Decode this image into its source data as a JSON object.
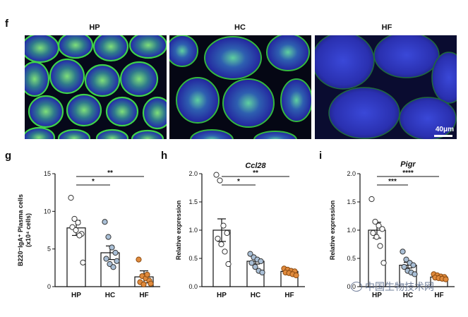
{
  "panels": {
    "f": "f",
    "g": "g",
    "h": "h",
    "i": "i"
  },
  "micrographs": [
    {
      "label": "HP"
    },
    {
      "label": "HC"
    },
    {
      "label": "HF"
    }
  ],
  "scale_bar_label": "40μm",
  "chart_data": [
    {
      "type": "bar",
      "panel": "g",
      "title": "",
      "ylabel": "B220⁻IgA⁺ Plasma cells",
      "ylabel2": "(x10⁴ cells)",
      "categories": [
        "HP",
        "HC",
        "HF"
      ],
      "means": [
        7.8,
        4.5,
        1.3
      ],
      "sem": [
        1.0,
        0.9,
        0.8
      ],
      "ylim": [
        0,
        15
      ],
      "yticks": [
        0,
        5,
        10,
        15
      ],
      "ytick_labels": [
        "0",
        "5",
        "10",
        "15"
      ],
      "points": [
        [
          11.8,
          9.0,
          8.5,
          7.0,
          7.9,
          7.5,
          6.8,
          3.2
        ],
        [
          8.6,
          6.6,
          5.2,
          4.5,
          3.7,
          3.0,
          2.6,
          3.4
        ],
        [
          3.6,
          1.4,
          1.1,
          0.8,
          0.6,
          0.3,
          1.6,
          0.4
        ]
      ],
      "colors": [
        "#ffffff",
        "#a9bfd6",
        "#e08a3c"
      ],
      "significance": [
        {
          "from": 0,
          "to": 1,
          "label": "*"
        },
        {
          "from": 0,
          "to": 2,
          "label": "**"
        }
      ]
    },
    {
      "type": "bar",
      "panel": "h",
      "title": "Ccl28",
      "ylabel": "Relative expression",
      "categories": [
        "HP",
        "HC",
        "HF"
      ],
      "means": [
        1.0,
        0.45,
        0.27
      ],
      "sem": [
        0.2,
        0.05,
        0.02
      ],
      "ylim": [
        0,
        2.0
      ],
      "yticks": [
        0,
        0.5,
        1.0,
        1.5,
        2.0
      ],
      "ytick_labels": [
        "0.0",
        "0.5",
        "1.0",
        "1.5",
        "2.0"
      ],
      "points": [
        [
          1.98,
          1.88,
          1.08,
          0.95,
          0.85,
          0.75,
          0.62,
          0.4
        ],
        [
          0.58,
          0.52,
          0.48,
          0.45,
          0.42,
          0.35,
          0.28,
          0.25
        ],
        [
          0.32,
          0.3,
          0.28,
          0.27,
          0.25,
          0.24,
          0.22,
          0.2
        ]
      ],
      "colors": [
        "#ffffff",
        "#a9bfd6",
        "#e08a3c"
      ],
      "significance": [
        {
          "from": 0,
          "to": 1,
          "label": "*"
        },
        {
          "from": 0,
          "to": 2,
          "label": "**"
        }
      ]
    },
    {
      "type": "bar",
      "panel": "i",
      "title": "Pigr",
      "ylabel": "Relative expression",
      "categories": [
        "HP",
        "HC",
        "HF"
      ],
      "means": [
        1.0,
        0.38,
        0.17
      ],
      "sem": [
        0.14,
        0.05,
        0.01
      ],
      "ylim": [
        0,
        2.0
      ],
      "yticks": [
        0,
        0.5,
        1.0,
        1.5,
        2.0
      ],
      "ytick_labels": [
        "0.0",
        "0.5",
        "1.0",
        "1.5",
        "2.0"
      ],
      "points": [
        [
          1.55,
          1.15,
          1.08,
          1.02,
          0.95,
          0.88,
          0.72,
          0.42
        ],
        [
          0.62,
          0.48,
          0.42,
          0.38,
          0.35,
          0.28,
          0.25,
          0.22
        ],
        [
          0.22,
          0.2,
          0.18,
          0.17,
          0.16,
          0.15,
          0.14,
          0.13
        ]
      ],
      "colors": [
        "#ffffff",
        "#a9bfd6",
        "#e08a3c"
      ],
      "significance": [
        {
          "from": 0,
          "to": 1,
          "label": "***"
        },
        {
          "from": 0,
          "to": 2,
          "label": "****"
        }
      ]
    }
  ],
  "watermark": "中国生物技术网"
}
